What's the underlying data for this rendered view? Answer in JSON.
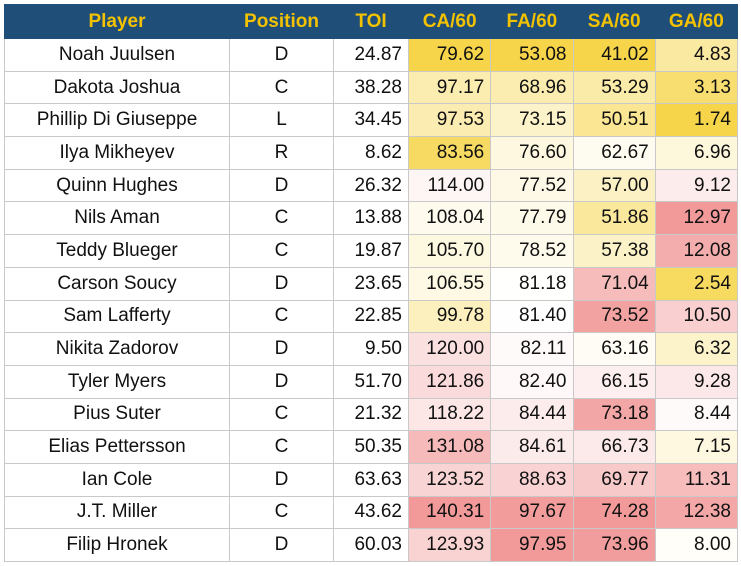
{
  "table": {
    "headers": {
      "player": "Player",
      "position": "Position",
      "toi": "TOI",
      "ca60": "CA/60",
      "fa60": "FA/60",
      "sa60": "SA/60",
      "ga60": "GA/60"
    },
    "colors": {
      "header_bg": "#1f4e79",
      "header_text": "#f2c200",
      "scale_low": "#f6d54a",
      "scale_mid": "#ffffff",
      "scale_high": "#f29a9a"
    },
    "rows": [
      {
        "player": "Noah Juulsen",
        "position": "D",
        "toi": "24.87",
        "ca60": "79.62",
        "fa60": "53.08",
        "sa60": "41.02",
        "ga60": "4.83"
      },
      {
        "player": "Dakota Joshua",
        "position": "C",
        "toi": "38.28",
        "ca60": "97.17",
        "fa60": "68.96",
        "sa60": "53.29",
        "ga60": "3.13"
      },
      {
        "player": "Phillip Di Giuseppe",
        "position": "L",
        "toi": "34.45",
        "ca60": "97.53",
        "fa60": "73.15",
        "sa60": "50.51",
        "ga60": "1.74"
      },
      {
        "player": "Ilya Mikheyev",
        "position": "R",
        "toi": "8.62",
        "ca60": "83.56",
        "fa60": "76.60",
        "sa60": "62.67",
        "ga60": "6.96"
      },
      {
        "player": "Quinn Hughes",
        "position": "D",
        "toi": "26.32",
        "ca60": "114.00",
        "fa60": "77.52",
        "sa60": "57.00",
        "ga60": "9.12"
      },
      {
        "player": "Nils Aman",
        "position": "C",
        "toi": "13.88",
        "ca60": "108.04",
        "fa60": "77.79",
        "sa60": "51.86",
        "ga60": "12.97"
      },
      {
        "player": "Teddy Blueger",
        "position": "C",
        "toi": "19.87",
        "ca60": "105.70",
        "fa60": "78.52",
        "sa60": "57.38",
        "ga60": "12.08"
      },
      {
        "player": "Carson Soucy",
        "position": "D",
        "toi": "23.65",
        "ca60": "106.55",
        "fa60": "81.18",
        "sa60": "71.04",
        "ga60": "2.54"
      },
      {
        "player": "Sam Lafferty",
        "position": "C",
        "toi": "22.85",
        "ca60": "99.78",
        "fa60": "81.40",
        "sa60": "73.52",
        "ga60": "10.50"
      },
      {
        "player": "Nikita Zadorov",
        "position": "D",
        "toi": "9.50",
        "ca60": "120.00",
        "fa60": "82.11",
        "sa60": "63.16",
        "ga60": "6.32"
      },
      {
        "player": "Tyler Myers",
        "position": "D",
        "toi": "51.70",
        "ca60": "121.86",
        "fa60": "82.40",
        "sa60": "66.15",
        "ga60": "9.28"
      },
      {
        "player": "Pius Suter",
        "position": "C",
        "toi": "21.32",
        "ca60": "118.22",
        "fa60": "84.44",
        "sa60": "73.18",
        "ga60": "8.44"
      },
      {
        "player": "Elias Pettersson",
        "position": "C",
        "toi": "50.35",
        "ca60": "131.08",
        "fa60": "84.61",
        "sa60": "66.73",
        "ga60": "7.15"
      },
      {
        "player": "Ian Cole",
        "position": "D",
        "toi": "63.63",
        "ca60": "123.52",
        "fa60": "88.63",
        "sa60": "69.77",
        "ga60": "11.31"
      },
      {
        "player": "J.T. Miller",
        "position": "C",
        "toi": "43.62",
        "ca60": "140.31",
        "fa60": "97.67",
        "sa60": "74.28",
        "ga60": "12.38"
      },
      {
        "player": "Filip Hronek",
        "position": "D",
        "toi": "60.03",
        "ca60": "123.93",
        "fa60": "97.95",
        "sa60": "73.96",
        "ga60": "8.00"
      }
    ]
  }
}
